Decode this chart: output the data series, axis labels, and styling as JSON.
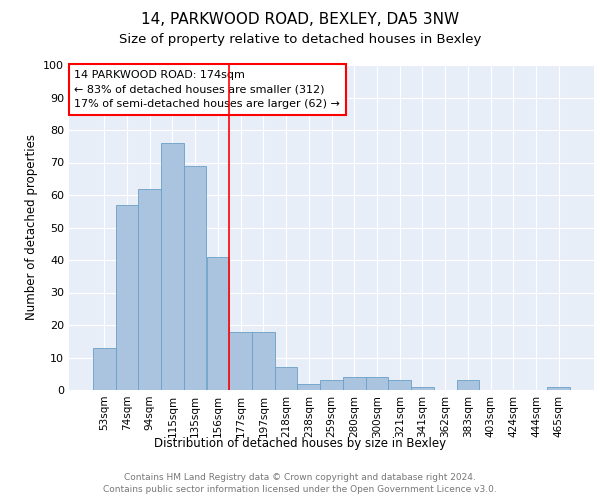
{
  "title1": "14, PARKWOOD ROAD, BEXLEY, DA5 3NW",
  "title2": "Size of property relative to detached houses in Bexley",
  "xlabel": "Distribution of detached houses by size in Bexley",
  "ylabel": "Number of detached properties",
  "categories": [
    "53sqm",
    "74sqm",
    "94sqm",
    "115sqm",
    "135sqm",
    "156sqm",
    "177sqm",
    "197sqm",
    "218sqm",
    "238sqm",
    "259sqm",
    "280sqm",
    "300sqm",
    "321sqm",
    "341sqm",
    "362sqm",
    "383sqm",
    "403sqm",
    "424sqm",
    "444sqm",
    "465sqm"
  ],
  "values": [
    13,
    57,
    62,
    76,
    69,
    41,
    18,
    18,
    7,
    2,
    3,
    4,
    4,
    3,
    1,
    0,
    3,
    0,
    0,
    0,
    1
  ],
  "bar_color": "#aac4df",
  "bar_edge_color": "#6a9fc8",
  "vline_x_pos": 5.5,
  "vline_color": "red",
  "annotation_text": "14 PARKWOOD ROAD: 174sqm\n← 83% of detached houses are smaller (312)\n17% of semi-detached houses are larger (62) →",
  "annotation_box_color": "white",
  "annotation_box_edge_color": "red",
  "ylim": [
    0,
    100
  ],
  "yticks": [
    0,
    10,
    20,
    30,
    40,
    50,
    60,
    70,
    80,
    90,
    100
  ],
  "background_color": "#e8eef8",
  "footer_text": "Contains HM Land Registry data © Crown copyright and database right 2024.\nContains public sector information licensed under the Open Government Licence v3.0.",
  "title1_fontsize": 11,
  "title2_fontsize": 9.5,
  "xlabel_fontsize": 8.5,
  "ylabel_fontsize": 8.5,
  "annotation_fontsize": 8,
  "footer_fontsize": 6.5,
  "tick_fontsize": 7.5,
  "ytick_fontsize": 8
}
